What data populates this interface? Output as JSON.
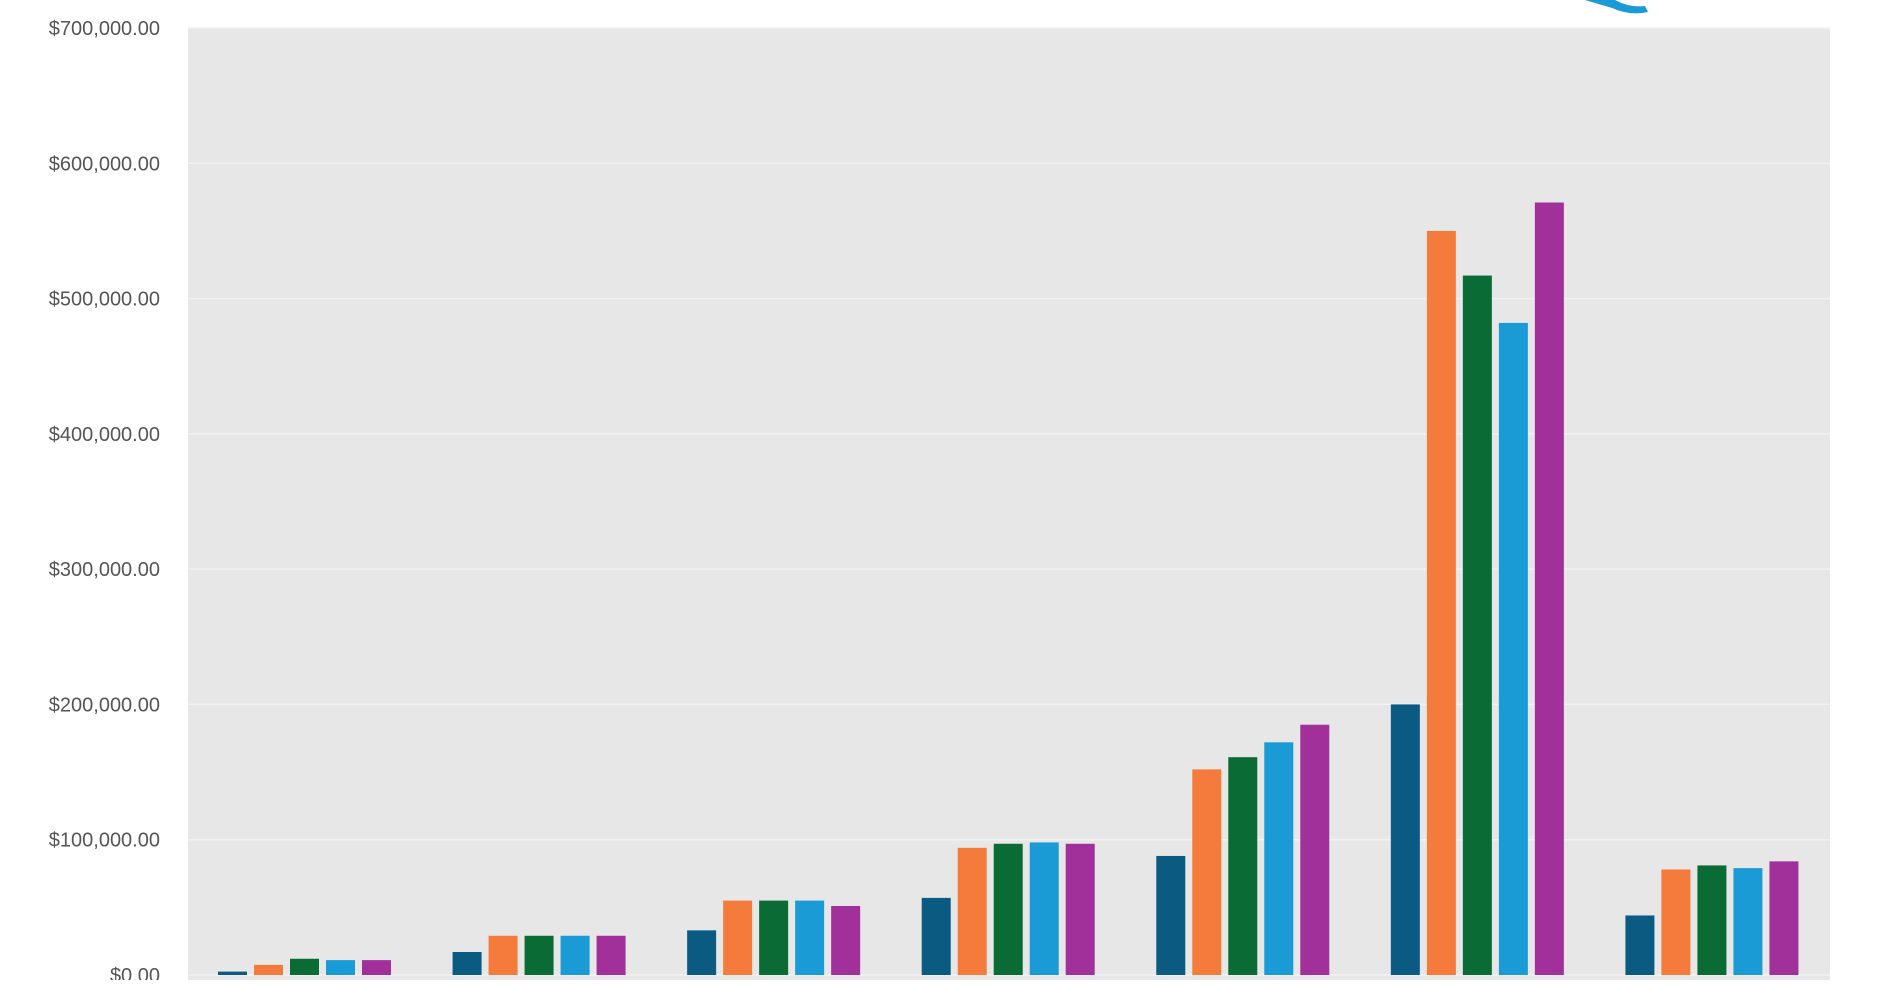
{
  "chart_data": {
    "type": "bar",
    "title": "",
    "xlabel": "",
    "ylabel": "",
    "ylim": [
      0,
      700000
    ],
    "y_ticks": [
      "$0.00",
      "$100,000.00",
      "$200,000.00",
      "$300,000.00",
      "$400,000.00",
      "$500,000.00",
      "$600,000.00",
      "$700,000.00"
    ],
    "y_tick_values": [
      0,
      100000,
      200000,
      300000,
      400000,
      500000,
      600000,
      700000
    ],
    "grid": "horizontal",
    "plot_background": "#e7e7e7",
    "categories": [
      "",
      "",
      "",
      "",
      "",
      "",
      ""
    ],
    "series": [
      {
        "color": "#0b5a82",
        "values": [
          2500,
          17000,
          33000,
          57000,
          88000,
          200000,
          44000
        ]
      },
      {
        "color": "#f47b3c",
        "values": [
          7500,
          29000,
          55000,
          94000,
          152000,
          550000,
          78000
        ]
      },
      {
        "color": "#0a6b34",
        "values": [
          12000,
          29000,
          55000,
          97000,
          161000,
          517000,
          81000
        ]
      },
      {
        "color": "#1a9bd5",
        "values": [
          11000,
          29000,
          55000,
          98000,
          172000,
          482000,
          79000
        ]
      },
      {
        "color": "#a1309a",
        "values": [
          11000,
          29000,
          51000,
          97000,
          185000,
          571000,
          84000
        ]
      }
    ]
  }
}
